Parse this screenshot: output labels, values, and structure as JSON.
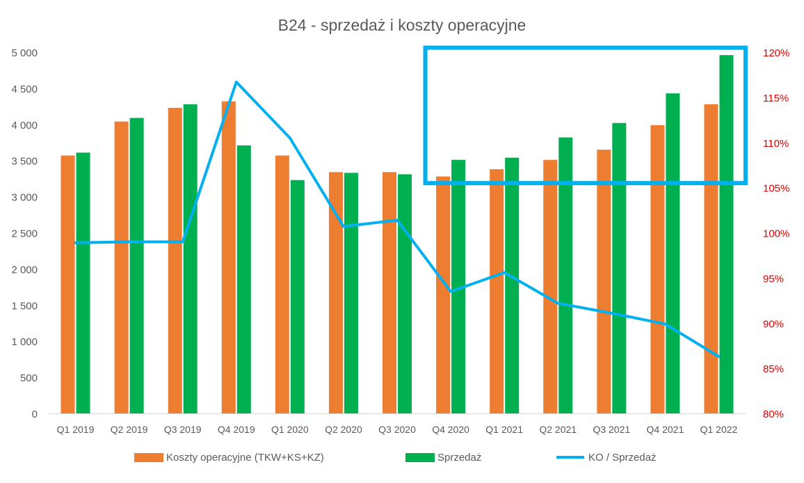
{
  "chart_data": {
    "type": "bar",
    "title": "B24 - sprzedaż i koszty operacyjne",
    "categories": [
      "Q1 2019",
      "Q2 2019",
      "Q3 2019",
      "Q4 2019",
      "Q1 2020",
      "Q2 2020",
      "Q3 2020",
      "Q4 2020",
      "Q1 2021",
      "Q2 2021",
      "Q3 2021",
      "Q4 2021",
      "Q1 2022"
    ],
    "series": [
      {
        "name": "Koszty operacyjne (TKW+KS+KZ)",
        "type": "bar",
        "axis": "left",
        "color": "#ED7D31",
        "values": [
          3570,
          4040,
          4230,
          4320,
          3570,
          3340,
          3340,
          3280,
          3380,
          3510,
          3650,
          3990,
          4280
        ]
      },
      {
        "name": "Sprzedaż",
        "type": "bar",
        "axis": "left",
        "color": "#00B050",
        "values": [
          3610,
          4090,
          4280,
          3710,
          3230,
          3330,
          3310,
          3510,
          3540,
          3820,
          4020,
          4430,
          4960
        ]
      },
      {
        "name": "KO / Sprzedaż",
        "type": "line",
        "axis": "right",
        "color": "#00B0F0",
        "values": [
          0.989,
          0.99,
          0.99,
          1.167,
          1.105,
          1.007,
          1.014,
          0.935,
          0.956,
          0.922,
          0.911,
          0.899,
          0.863
        ]
      }
    ],
    "y_left": {
      "range": [
        0,
        5000
      ],
      "ticks": [
        "0",
        "500",
        "1 000",
        "1 500",
        "2 000",
        "2 500",
        "3 000",
        "3 500",
        "4 000",
        "4 500",
        "5 000"
      ]
    },
    "y_right": {
      "range": [
        0.8,
        1.2
      ],
      "ticks": [
        "80%",
        "85%",
        "90%",
        "95%",
        "100%",
        "105%",
        "110%",
        "115%",
        "120%"
      ],
      "color": "#E00000"
    },
    "grid": false,
    "legend_position": "bottom",
    "highlight": {
      "color": "#00B0F0",
      "categories": [
        "Q4 2020",
        "Q1 2022"
      ],
      "y_right_range": [
        1.055,
        1.205
      ]
    }
  }
}
